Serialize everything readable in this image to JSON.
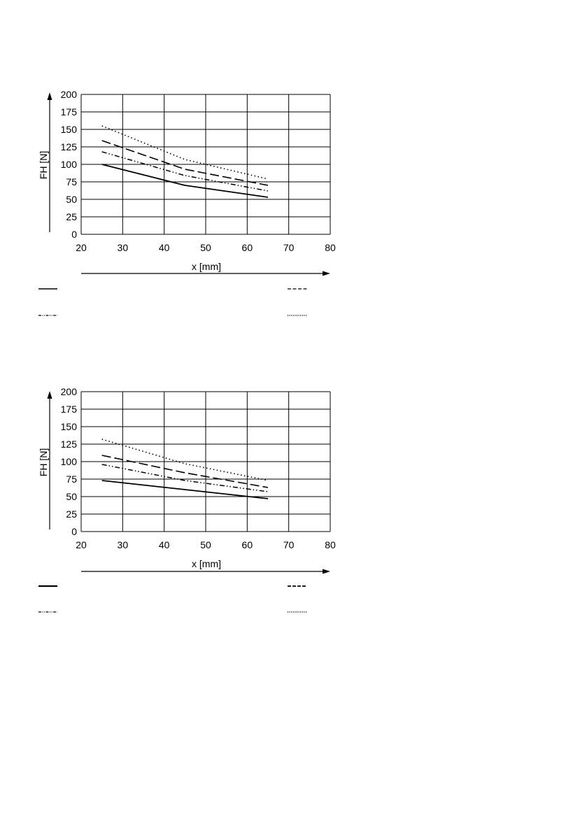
{
  "chart_data": [
    {
      "type": "line",
      "xlabel": "x [mm]",
      "ylabel": "FH [N]",
      "xlim": [
        20,
        80
      ],
      "ylim": [
        0,
        200
      ],
      "xticks": [
        20,
        30,
        40,
        50,
        60,
        70,
        80
      ],
      "yticks": [
        0,
        25,
        50,
        75,
        100,
        125,
        150,
        175,
        200
      ],
      "grid": true,
      "legend_position": "bottom",
      "series": [
        {
          "style": "solid",
          "x": [
            25,
            45,
            65
          ],
          "y": [
            100,
            70,
            53
          ]
        },
        {
          "style": "dashed",
          "x": [
            25,
            45,
            65
          ],
          "y": [
            134,
            93,
            70
          ]
        },
        {
          "style": "dash-dot",
          "x": [
            25,
            45,
            65
          ],
          "y": [
            118,
            84,
            62
          ]
        },
        {
          "style": "dotted",
          "x": [
            25,
            45,
            65
          ],
          "y": [
            155,
            107,
            79
          ]
        }
      ]
    },
    {
      "type": "line",
      "xlabel": "x [mm]",
      "ylabel": "FH [N]",
      "xlim": [
        20,
        80
      ],
      "ylim": [
        0,
        200
      ],
      "xticks": [
        20,
        30,
        40,
        50,
        60,
        70,
        80
      ],
      "yticks": [
        0,
        25,
        50,
        75,
        100,
        125,
        150,
        175,
        200
      ],
      "grid": true,
      "legend_position": "bottom",
      "series": [
        {
          "style": "solid",
          "x": [
            25,
            45,
            65
          ],
          "y": [
            73,
            60,
            47
          ]
        },
        {
          "style": "dashed",
          "x": [
            25,
            45,
            65
          ],
          "y": [
            109,
            84,
            63
          ]
        },
        {
          "style": "dash-dot",
          "x": [
            25,
            45,
            65
          ],
          "y": [
            96,
            73,
            57
          ]
        },
        {
          "style": "dotted",
          "x": [
            25,
            45,
            65
          ],
          "y": [
            132,
            97,
            73
          ]
        }
      ]
    }
  ]
}
